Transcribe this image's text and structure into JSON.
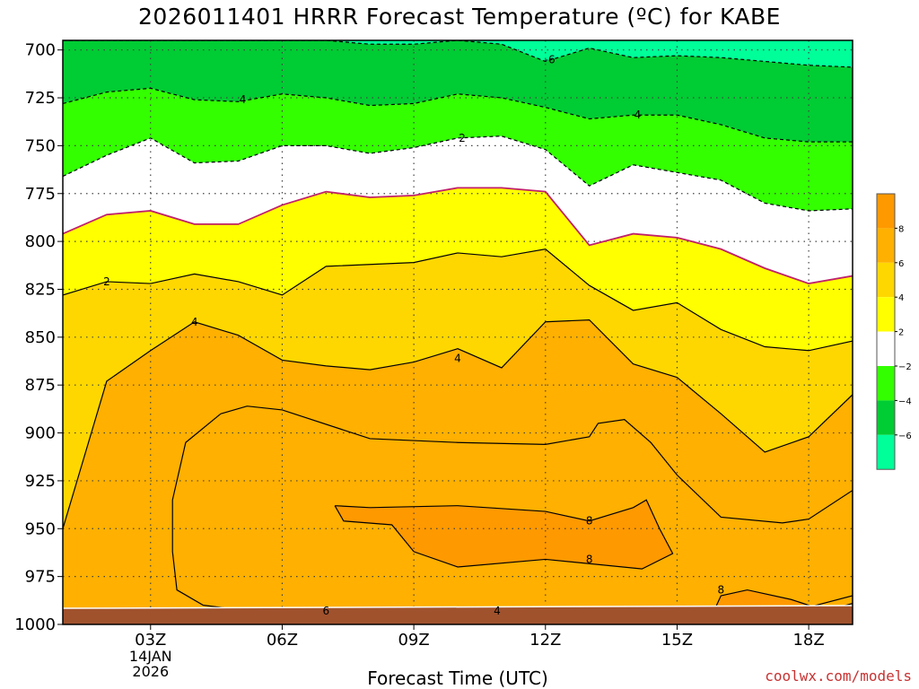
{
  "chart_data": {
    "type": "heatmap",
    "title": "2026011401 HRRR Forecast Temperature (ºC) for KABE",
    "xlabel": "Forecast Time (UTC)",
    "ylabel": "",
    "credit": "coolwx.com/models",
    "y_axis": {
      "quantity": "pressure (hPa)",
      "ylim": [
        1000,
        695
      ],
      "ticks": [
        "700",
        "725",
        "750",
        "775",
        "800",
        "825",
        "850",
        "875",
        "900",
        "925",
        "950",
        "975",
        "1000"
      ]
    },
    "x_axis": {
      "range_hours": [
        1,
        19
      ],
      "ticks": [
        {
          "hour": 3,
          "label": "03Z",
          "sub": [
            "14JAN",
            "2026"
          ]
        },
        {
          "hour": 6,
          "label": "06Z",
          "sub": []
        },
        {
          "hour": 9,
          "label": "09Z",
          "sub": []
        },
        {
          "hour": 12,
          "label": "12Z",
          "sub": []
        },
        {
          "hour": 15,
          "label": "15Z",
          "sub": []
        },
        {
          "hour": 18,
          "label": "18Z",
          "sub": []
        }
      ]
    },
    "grid": true,
    "colorbar": {
      "position": "right",
      "labels": [
        "8",
        "6",
        "4",
        "2",
        "−2",
        "−4",
        "−6"
      ],
      "colors": [
        "#ff9900",
        "#ffb000",
        "#ffd700",
        "#ffff00",
        "#ffffff",
        "#33ff00",
        "#00cc33",
        "#00ff99"
      ]
    },
    "hours": [
      1,
      2,
      3,
      4,
      5,
      6,
      7,
      8,
      9,
      10,
      11,
      12,
      13,
      14,
      15,
      16,
      17,
      18,
      19
    ],
    "isotherms": [
      {
        "value": "-6",
        "label": "-6",
        "pressure": [
          695,
          695,
          695,
          695,
          695,
          695,
          695,
          697,
          697,
          695,
          697,
          706,
          699,
          704,
          703,
          704,
          706,
          708,
          709
        ]
      },
      {
        "value": "-4",
        "label": "4",
        "pressure": [
          728,
          722,
          720,
          726,
          727,
          723,
          725,
          729,
          728,
          723,
          725,
          730,
          736,
          734,
          734,
          739,
          746,
          748,
          748
        ]
      },
      {
        "value": "-2",
        "label": "2",
        "pressure": [
          766,
          755,
          746,
          759,
          758,
          750,
          750,
          754,
          751,
          746,
          745,
          752,
          771,
          760,
          764,
          768,
          780,
          784,
          783
        ]
      },
      {
        "value": "0",
        "label": "",
        "pressure": [
          796,
          786,
          784,
          791,
          791,
          781,
          774,
          777,
          776,
          772,
          772,
          774,
          802,
          796,
          798,
          804,
          814,
          822,
          818
        ]
      },
      {
        "value": "2",
        "label": "2",
        "pressure": [
          828,
          821,
          822,
          817,
          821,
          828,
          813,
          812,
          811,
          806,
          808,
          804,
          823,
          836,
          832,
          846,
          855,
          857,
          852
        ]
      },
      {
        "value": "4",
        "label": "4",
        "pressure": [
          950,
          873,
          857,
          842,
          849,
          862,
          865,
          867,
          863,
          856,
          866,
          842,
          841,
          864,
          871,
          890,
          910,
          902,
          880
        ]
      },
      {
        "value": "6",
        "label": "6",
        "pressure": [
          993,
          993,
          993,
          994,
          996,
          993,
          993,
          993,
          993,
          993,
          993,
          993,
          993,
          993,
          993,
          993,
          991,
          991,
          985
        ]
      },
      {
        "value": "8",
        "label": "8",
        "pressure": [
          1000,
          1000,
          1000,
          1000,
          1000,
          1000,
          1000,
          1000,
          1000,
          1000,
          1000,
          1000,
          1000,
          1000,
          1000,
          1000,
          1000,
          1000,
          1000
        ]
      }
    ],
    "closed_contours": [
      {
        "value": "6",
        "label": "6",
        "points": [
          [
            4.6,
            890
          ],
          [
            5.2,
            886
          ],
          [
            6,
            888
          ],
          [
            8,
            903
          ],
          [
            10,
            905
          ],
          [
            12,
            906
          ],
          [
            13,
            902
          ],
          [
            13.2,
            895
          ],
          [
            13.8,
            893
          ],
          [
            14.4,
            905
          ],
          [
            15,
            922
          ],
          [
            16,
            944
          ],
          [
            17.4,
            947
          ],
          [
            18,
            945
          ],
          [
            19,
            930
          ],
          [
            19,
            990
          ],
          [
            17,
            994
          ],
          [
            15.4,
            996
          ],
          [
            14,
            993
          ],
          [
            12,
            993
          ],
          [
            10,
            995
          ],
          [
            8,
            995
          ],
          [
            6,
            995
          ],
          [
            4.2,
            990
          ],
          [
            3.6,
            982
          ],
          [
            3.5,
            962
          ],
          [
            3.5,
            935
          ],
          [
            3.8,
            905
          ],
          [
            4.6,
            890
          ]
        ]
      },
      {
        "value": "8",
        "label": "8",
        "points": [
          [
            7.2,
            938
          ],
          [
            8,
            939
          ],
          [
            10,
            938
          ],
          [
            12,
            941
          ],
          [
            13,
            946
          ],
          [
            14,
            939
          ],
          [
            14.3,
            935
          ],
          [
            14.6,
            950
          ],
          [
            14.9,
            963
          ],
          [
            14.2,
            971
          ],
          [
            12,
            966
          ],
          [
            10,
            970
          ],
          [
            9,
            962
          ],
          [
            8.5,
            948
          ],
          [
            7.4,
            946
          ],
          [
            7.2,
            938
          ]
        ]
      },
      {
        "value": "8",
        "label": "8",
        "points": [
          [
            15.7,
            1000
          ],
          [
            16,
            985
          ],
          [
            16.6,
            982
          ],
          [
            17.6,
            987
          ],
          [
            18.4,
            993
          ],
          [
            19,
            989
          ],
          [
            19,
            1000
          ],
          [
            15.7,
            1000
          ]
        ]
      },
      {
        "value": "8",
        "label": "",
        "points": [
          [
            1,
            992
          ],
          [
            1.3,
            993
          ],
          [
            1.6,
            997
          ],
          [
            1.6,
            1000
          ],
          [
            1,
            1000
          ],
          [
            1,
            992
          ]
        ]
      },
      {
        "value": "4",
        "label": "4",
        "points": [
          [
            9.6,
            996
          ],
          [
            10.8,
            994
          ],
          [
            12,
            993
          ],
          [
            13,
            992
          ],
          [
            14,
            994
          ],
          [
            14.5,
            995
          ],
          [
            14.5,
            1000
          ],
          [
            9.6,
            1000
          ],
          [
            9.6,
            996
          ]
        ]
      }
    ],
    "contour_labels": [
      {
        "text": "-6",
        "hour": 12.1,
        "pressure": 705
      },
      {
        "text": "4",
        "hour": 5.1,
        "pressure": 726
      },
      {
        "text": "4",
        "hour": 14.1,
        "pressure": 734
      },
      {
        "text": "2",
        "hour": 10.1,
        "pressure": 746
      },
      {
        "text": "2",
        "hour": 2.0,
        "pressure": 821
      },
      {
        "text": "4",
        "hour": 4.0,
        "pressure": 842
      },
      {
        "text": "4",
        "hour": 10.0,
        "pressure": 861
      },
      {
        "text": "6",
        "hour": 7.0,
        "pressure": 993
      },
      {
        "text": "4",
        "hour": 10.9,
        "pressure": 993
      },
      {
        "text": "8",
        "hour": 13.0,
        "pressure": 946
      },
      {
        "text": "8",
        "hour": 13.0,
        "pressure": 966
      },
      {
        "text": "8",
        "hour": 16.0,
        "pressure": 982
      }
    ],
    "ground_level_hpa": 993
  }
}
